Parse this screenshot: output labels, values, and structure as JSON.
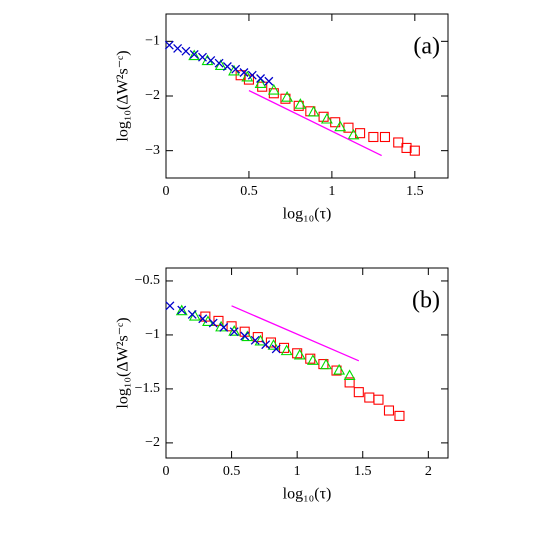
{
  "chart_data": [
    {
      "type": "scatter",
      "annotation": "(a)",
      "x_label": "log₁₀(τ)",
      "y_label": "log₁₀(ΔW²s⁻ᶜ)",
      "xlim": [
        0,
        1.7
      ],
      "ylim": [
        -3.5,
        -0.5
      ],
      "xticks": [
        0,
        0.5,
        1,
        1.5
      ],
      "yticks": [
        {
          "value": -1,
          "label": "−1"
        },
        {
          "value": -2,
          "label": "−2"
        },
        {
          "value": -3,
          "label": "−3"
        }
      ],
      "series": [
        {
          "color": "#ff0000",
          "marker": "square",
          "x": [
            0.45,
            0.5,
            0.58,
            0.65,
            0.72,
            0.8,
            0.87,
            0.95,
            1.02,
            1.1,
            1.17,
            1.25,
            1.32,
            1.4,
            1.45,
            1.5
          ],
          "values": [
            -1.62,
            -1.7,
            -1.83,
            -1.95,
            -2.05,
            -2.18,
            -2.28,
            -2.38,
            -2.48,
            -2.58,
            -2.68,
            -2.75,
            -2.75,
            -2.85,
            -2.95,
            -3.0
          ]
        },
        {
          "color": "#00dd00",
          "marker": "triangle",
          "x": [
            0.17,
            0.25,
            0.33,
            0.41,
            0.49,
            0.57,
            0.65,
            0.73,
            0.81,
            0.89,
            0.97,
            1.05,
            1.13
          ],
          "values": [
            -1.27,
            -1.36,
            -1.45,
            -1.55,
            -1.66,
            -1.78,
            -1.9,
            -2.03,
            -2.16,
            -2.3,
            -2.43,
            -2.57,
            -2.72
          ]
        },
        {
          "color": "#0000cc",
          "marker": "cross",
          "x": [
            0.02,
            0.07,
            0.12,
            0.17,
            0.22,
            0.27,
            0.32,
            0.37,
            0.42,
            0.47,
            0.52,
            0.57,
            0.62
          ],
          "values": [
            -1.07,
            -1.13,
            -1.18,
            -1.24,
            -1.29,
            -1.35,
            -1.4,
            -1.46,
            -1.51,
            -1.57,
            -1.62,
            -1.68,
            -1.73
          ]
        },
        {
          "color": "#ff00ff",
          "marker": "line",
          "x": [
            0.5,
            1.3
          ],
          "values": [
            -1.9,
            -3.09
          ]
        }
      ]
    },
    {
      "type": "scatter",
      "annotation": "(b)",
      "x_label": "log₁₀(τ)",
      "y_label": "log₁₀(ΔW²s⁻ᶜ)",
      "xlim": [
        0,
        2.15
      ],
      "ylim": [
        -2.14,
        -0.38
      ],
      "xticks": [
        0,
        0.5,
        1,
        1.5,
        2
      ],
      "yticks": [
        {
          "value": -0.5,
          "label": "−0.5"
        },
        {
          "value": -1,
          "label": "−1"
        },
        {
          "value": -1.5,
          "label": "−1.5"
        },
        {
          "value": -2,
          "label": "−2"
        }
      ],
      "series": [
        {
          "color": "#ff0000",
          "marker": "square",
          "x": [
            0.3,
            0.4,
            0.5,
            0.6,
            0.7,
            0.8,
            0.9,
            1.0,
            1.1,
            1.2,
            1.3,
            1.4,
            1.47,
            1.55,
            1.62,
            1.7,
            1.78
          ],
          "values": [
            -0.83,
            -0.87,
            -0.92,
            -0.97,
            -1.02,
            -1.07,
            -1.12,
            -1.17,
            -1.22,
            -1.27,
            -1.33,
            -1.44,
            -1.53,
            -1.58,
            -1.6,
            -1.7,
            -1.75
          ]
        },
        {
          "color": "#00dd00",
          "marker": "triangle",
          "x": [
            0.12,
            0.22,
            0.32,
            0.42,
            0.52,
            0.62,
            0.72,
            0.82,
            0.92,
            1.02,
            1.12,
            1.22,
            1.32,
            1.4
          ],
          "values": [
            -0.78,
            -0.83,
            -0.88,
            -0.93,
            -0.97,
            -1.02,
            -1.06,
            -1.1,
            -1.15,
            -1.19,
            -1.24,
            -1.28,
            -1.33,
            -1.38
          ]
        },
        {
          "color": "#0000cc",
          "marker": "cross",
          "x": [
            0.03,
            0.12,
            0.2,
            0.28,
            0.36,
            0.44,
            0.52,
            0.6,
            0.68,
            0.76,
            0.84
          ],
          "values": [
            -0.73,
            -0.77,
            -0.81,
            -0.85,
            -0.89,
            -0.93,
            -0.97,
            -1.01,
            -1.05,
            -1.09,
            -1.13
          ]
        },
        {
          "color": "#ff00ff",
          "marker": "line",
          "x": [
            0.5,
            1.47
          ],
          "values": [
            -0.73,
            -1.24
          ]
        }
      ]
    }
  ]
}
